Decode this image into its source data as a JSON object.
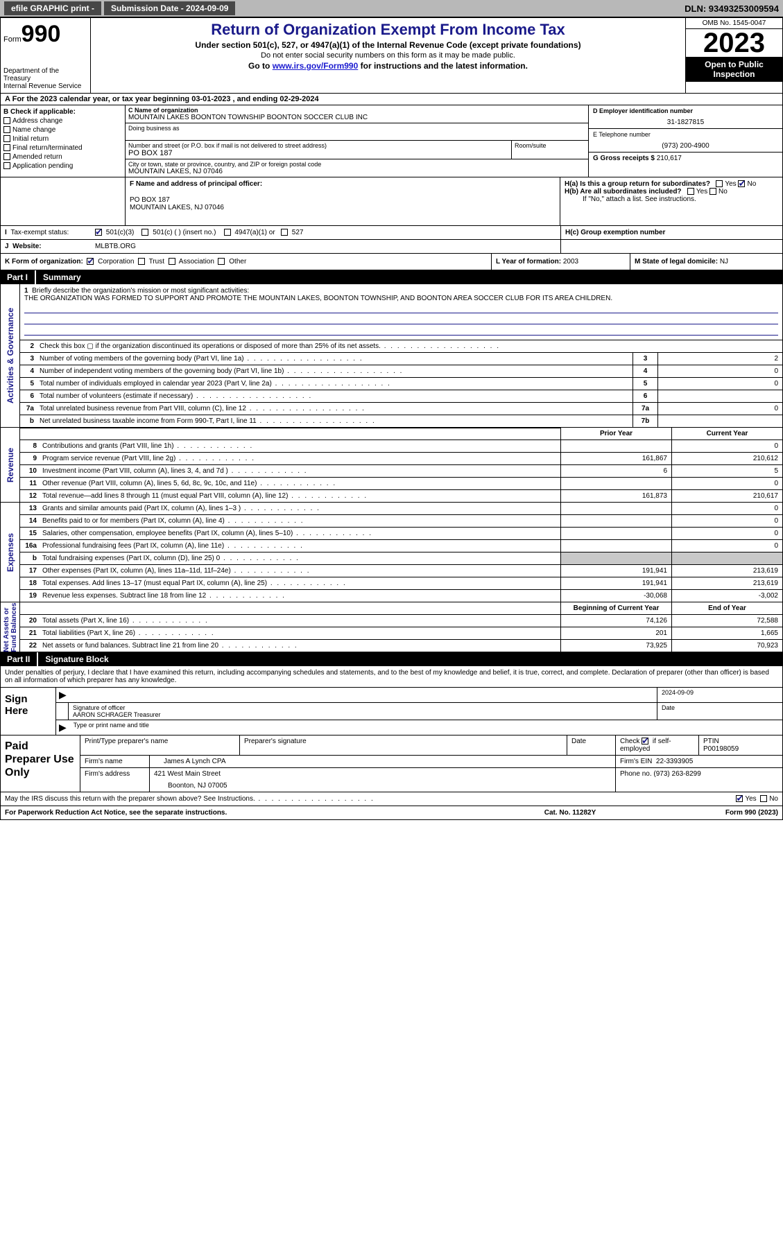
{
  "topbar": {
    "efile": "efile GRAPHIC print -",
    "submission_label": "Submission Date - 2024-09-09",
    "dln_label": "DLN: 93493253009594"
  },
  "header": {
    "form_word": "Form",
    "form_num": "990",
    "dept": "Department of the Treasury\nInternal Revenue Service",
    "title": "Return of Organization Exempt From Income Tax",
    "sub1": "Under section 501(c), 527, or 4947(a)(1) of the Internal Revenue Code (except private foundations)",
    "sub2": "Do not enter social security numbers on this form as it may be made public.",
    "sub3_pre": "Go to ",
    "sub3_link": "www.irs.gov/Form990",
    "sub3_post": " for instructions and the latest information.",
    "omb": "OMB No. 1545-0047",
    "year": "2023",
    "open": "Open to Public Inspection"
  },
  "calyear": "For the 2023 calendar year, or tax year beginning 03-01-2023   , and ending 02-29-2024",
  "secB": {
    "label": "B Check if applicable:",
    "items": [
      "Address change",
      "Name change",
      "Initial return",
      "Final return/terminated",
      "Amended return",
      "Application pending"
    ]
  },
  "secC": {
    "name_label": "C Name of organization",
    "name": "MOUNTAIN LAKES BOONTON TOWNSHIP BOONTON SOCCER CLUB INC",
    "dba_label": "Doing business as",
    "street_label": "Number and street (or P.O. box if mail is not delivered to street address)",
    "street": "PO BOX 187",
    "room_label": "Room/suite",
    "city_label": "City or town, state or province, country, and ZIP or foreign postal code",
    "city": "MOUNTAIN LAKES, NJ  07046"
  },
  "secD": {
    "ein_label": "D Employer identification number",
    "ein": "31-1827815",
    "tel_label": "E Telephone number",
    "tel": "(973) 200-4900",
    "gross_label": "G Gross receipts $",
    "gross": "210,617"
  },
  "secF": {
    "label": "F  Name and address of principal officer:",
    "addr1": "PO BOX 187",
    "addr2": "MOUNTAIN LAKES, NJ  07046"
  },
  "secH": {
    "ha_label": "H(a)  Is this a group return for subordinates?",
    "hb_label": "H(b)  Are all subordinates included?",
    "hb_note": "If \"No,\" attach a list. See instructions.",
    "hc_label": "H(c)  Group exemption number",
    "yes": "Yes",
    "no": "No"
  },
  "secI": {
    "label": "Tax-exempt status:",
    "c3": "501(c)(3)",
    "c": "501(c) (  ) (insert no.)",
    "a1": "4947(a)(1) or",
    "s527": "527"
  },
  "secJ": {
    "label": "Website:",
    "val": "MLBTB.ORG"
  },
  "secK": {
    "label": "K Form of organization:",
    "corp": "Corporation",
    "trust": "Trust",
    "assoc": "Association",
    "other": "Other"
  },
  "secL": {
    "label": "L Year of formation:",
    "val": "2003"
  },
  "secM": {
    "label": "M State of legal domicile:",
    "val": "NJ"
  },
  "part1": {
    "num": "Part I",
    "title": "Summary"
  },
  "mission": {
    "num": "1",
    "label": "Briefly describe the organization's mission or most significant activities:",
    "text": "THE ORGANIZATION WAS FORMED TO SUPPORT AND PROMOTE THE MOUNTAIN LAKES, BOONTON TOWNSHIP, AND BOONTON AREA SOCCER CLUB FOR ITS AREA CHILDREN."
  },
  "gov_rows": [
    {
      "n": "2",
      "t": "Check this box ▢  if the organization discontinued its operations or disposed of more than 25% of its net assets.",
      "box": "",
      "val": ""
    },
    {
      "n": "3",
      "t": "Number of voting members of the governing body (Part VI, line 1a)",
      "box": "3",
      "val": "2"
    },
    {
      "n": "4",
      "t": "Number of independent voting members of the governing body (Part VI, line 1b)",
      "box": "4",
      "val": "0"
    },
    {
      "n": "5",
      "t": "Total number of individuals employed in calendar year 2023 (Part V, line 2a)",
      "box": "5",
      "val": "0"
    },
    {
      "n": "6",
      "t": "Total number of volunteers (estimate if necessary)",
      "box": "6",
      "val": ""
    },
    {
      "n": "7a",
      "t": "Total unrelated business revenue from Part VIII, column (C), line 12",
      "box": "7a",
      "val": "0"
    },
    {
      "n": "b",
      "t": "Net unrelated business taxable income from Form 990-T, Part I, line 11",
      "box": "7b",
      "val": ""
    }
  ],
  "rev_hdr": {
    "c1": "Prior Year",
    "c2": "Current Year"
  },
  "rev_rows": [
    {
      "n": "8",
      "t": "Contributions and grants (Part VIII, line 1h)",
      "c1": "",
      "c2": "0"
    },
    {
      "n": "9",
      "t": "Program service revenue (Part VIII, line 2g)",
      "c1": "161,867",
      "c2": "210,612"
    },
    {
      "n": "10",
      "t": "Investment income (Part VIII, column (A), lines 3, 4, and 7d )",
      "c1": "6",
      "c2": "5"
    },
    {
      "n": "11",
      "t": "Other revenue (Part VIII, column (A), lines 5, 6d, 8c, 9c, 10c, and 11e)",
      "c1": "",
      "c2": "0"
    },
    {
      "n": "12",
      "t": "Total revenue—add lines 8 through 11 (must equal Part VIII, column (A), line 12)",
      "c1": "161,873",
      "c2": "210,617"
    }
  ],
  "exp_rows": [
    {
      "n": "13",
      "t": "Grants and similar amounts paid (Part IX, column (A), lines 1–3 )",
      "c1": "",
      "c2": "0"
    },
    {
      "n": "14",
      "t": "Benefits paid to or for members (Part IX, column (A), line 4)",
      "c1": "",
      "c2": "0"
    },
    {
      "n": "15",
      "t": "Salaries, other compensation, employee benefits (Part IX, column (A), lines 5–10)",
      "c1": "",
      "c2": "0"
    },
    {
      "n": "16a",
      "t": "Professional fundraising fees (Part IX, column (A), line 11e)",
      "c1": "",
      "c2": "0"
    },
    {
      "n": "b",
      "t": "Total fundraising expenses (Part IX, column (D), line 25) 0",
      "c1": "GREY",
      "c2": "GREY"
    },
    {
      "n": "17",
      "t": "Other expenses (Part IX, column (A), lines 11a–11d, 11f–24e)",
      "c1": "191,941",
      "c2": "213,619"
    },
    {
      "n": "18",
      "t": "Total expenses. Add lines 13–17 (must equal Part IX, column (A), line 25)",
      "c1": "191,941",
      "c2": "213,619"
    },
    {
      "n": "19",
      "t": "Revenue less expenses. Subtract line 18 from line 12",
      "c1": "-30,068",
      "c2": "-3,002"
    }
  ],
  "na_hdr": {
    "c1": "Beginning of Current Year",
    "c2": "End of Year"
  },
  "na_rows": [
    {
      "n": "20",
      "t": "Total assets (Part X, line 16)",
      "c1": "74,126",
      "c2": "72,588"
    },
    {
      "n": "21",
      "t": "Total liabilities (Part X, line 26)",
      "c1": "201",
      "c2": "1,665"
    },
    {
      "n": "22",
      "t": "Net assets or fund balances. Subtract line 21 from line 20",
      "c1": "73,925",
      "c2": "70,923"
    }
  ],
  "vlabels": {
    "gov": "Activities & Governance",
    "rev": "Revenue",
    "exp": "Expenses",
    "na": "Net Assets or\nFund Balances"
  },
  "part2": {
    "num": "Part II",
    "title": "Signature Block"
  },
  "sig_decl": "Under penalties of perjury, I declare that I have examined this return, including accompanying schedules and statements, and to the best of my knowledge and belief, it is true, correct, and complete. Declaration of preparer (other than officer) is based on all information of which preparer has any knowledge.",
  "sign": {
    "label": "Sign Here",
    "date": "2024-09-09",
    "sig_label": "Signature of officer",
    "name": "AARON SCHRAGER Treasurer",
    "type_label": "Type or print name and title",
    "date_label": "Date"
  },
  "prep": {
    "label": "Paid Preparer Use Only",
    "r1": {
      "c1": "Print/Type preparer's name",
      "c2": "Preparer's signature",
      "c3": "Date",
      "c4_pre": "Check",
      "c4_post": "if self-employed",
      "c5": "PTIN",
      "ptin": "P00198059"
    },
    "r2": {
      "c1": "Firm's name",
      "v1": "James A Lynch CPA",
      "c2": "Firm's EIN",
      "v2": "22-3393905"
    },
    "r3": {
      "c1": "Firm's address",
      "v1": "421 West Main Street",
      "v1b": "Boonton, NJ  07005",
      "c2": "Phone no.",
      "v2": "(973) 263-8299"
    }
  },
  "discuss": {
    "q": "May the IRS discuss this return with the preparer shown above? See Instructions.",
    "yes": "Yes",
    "no": "No"
  },
  "footer": {
    "f1": "For Paperwork Reduction Act Notice, see the separate instructions.",
    "f2": "Cat. No. 11282Y",
    "f3": "Form 990 (2023)"
  }
}
